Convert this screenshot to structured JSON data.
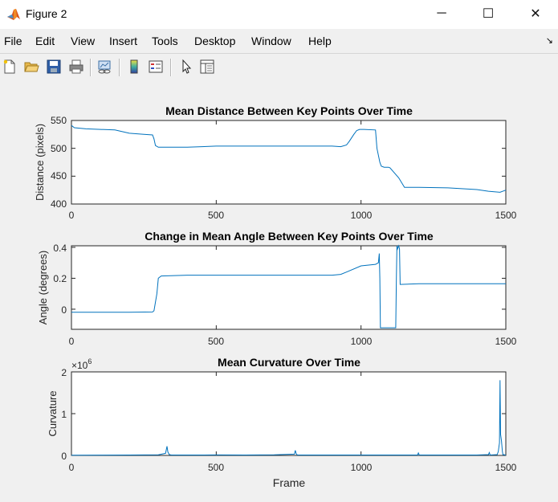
{
  "window": {
    "title": "Figure 2",
    "minimize_glyph": "─",
    "maximize_glyph": "☐",
    "close_glyph": "✕"
  },
  "menu": {
    "items": [
      "File",
      "Edit",
      "View",
      "Insert",
      "Tools",
      "Desktop",
      "Window",
      "Help"
    ],
    "dock_glyph": "↘"
  },
  "toolbar": {
    "buttons": [
      "new-figure",
      "open-file",
      "save",
      "print",
      "link-plot",
      "insert-colorbar",
      "insert-legend",
      "edit-plot",
      "property-inspector"
    ]
  },
  "colors": {
    "line": "#0072bd",
    "axes_bg": "#ffffff",
    "figure_bg": "#f0f0f0"
  },
  "chart_data": [
    {
      "type": "line",
      "title": "Mean Distance Between Key Points Over Time",
      "xlabel": "",
      "ylabel": "Distance (pixels)",
      "xlim": [
        0,
        1500
      ],
      "ylim": [
        400,
        550
      ],
      "xticks": [
        "0",
        "500",
        "1000",
        "1500"
      ],
      "yticks": [
        "400",
        "450",
        "500",
        "550"
      ],
      "x": [
        0,
        10,
        50,
        150,
        200,
        250,
        280,
        285,
        290,
        300,
        400,
        500,
        700,
        900,
        930,
        950,
        960,
        975,
        985,
        995,
        1010,
        1050,
        1055,
        1065,
        1070,
        1080,
        1095,
        1100,
        1130,
        1150,
        1200,
        1300,
        1400,
        1440,
        1480,
        1500
      ],
      "y": [
        541,
        537,
        535,
        533,
        527,
        525,
        524,
        517,
        505,
        502,
        502,
        504,
        504,
        504,
        503,
        506,
        513,
        525,
        532,
        534,
        534,
        533,
        500,
        475,
        468,
        466,
        466,
        465,
        447,
        430,
        430,
        429,
        426,
        423,
        421,
        425
      ]
    },
    {
      "type": "line",
      "title": "Change in Mean Angle Between Key Points Over Time",
      "xlabel": "",
      "ylabel": "Angle (degrees)",
      "xlim": [
        0,
        1500
      ],
      "ylim": [
        -0.13,
        0.41
      ],
      "xticks": [
        "0",
        "500",
        "1000",
        "1500"
      ],
      "yticks": [
        "0",
        "0.2",
        "0.4"
      ],
      "x": [
        0,
        200,
        280,
        285,
        295,
        300,
        310,
        400,
        500,
        700,
        900,
        930,
        950,
        1000,
        1050,
        1060,
        1063,
        1065,
        1067,
        1120,
        1122,
        1124,
        1126,
        1130,
        1133,
        1135,
        1200,
        1500
      ],
      "y": [
        -0.02,
        -0.02,
        -0.018,
        -0.01,
        0.1,
        0.2,
        0.215,
        0.22,
        0.22,
        0.22,
        0.22,
        0.225,
        0.24,
        0.28,
        0.29,
        0.3,
        0.36,
        0.2,
        -0.12,
        -0.12,
        0.2,
        0.41,
        0.39,
        0.41,
        0.39,
        0.16,
        0.165,
        0.165
      ]
    },
    {
      "type": "line",
      "title": "Mean Curvature Over Time",
      "xlabel": "Frame",
      "ylabel": "Curvature",
      "exponent_label": "×10",
      "exponent_power": "6",
      "xlim": [
        0,
        1500
      ],
      "ylim": [
        0,
        2
      ],
      "xticks": [
        "0",
        "500",
        "1000",
        "1500"
      ],
      "yticks": [
        "0",
        "1",
        "2"
      ],
      "x": [
        0,
        100,
        200,
        300,
        325,
        330,
        333,
        338,
        345,
        400,
        500,
        600,
        700,
        770,
        773,
        776,
        780,
        800,
        900,
        1000,
        1100,
        1195,
        1198,
        1201,
        1300,
        1400,
        1440,
        1443,
        1446,
        1470,
        1474,
        1478,
        1480,
        1482,
        1485,
        1488,
        1490,
        1500
      ],
      "y": [
        0.005,
        0.008,
        0.01,
        0.015,
        0.05,
        0.22,
        0.08,
        0.02,
        0.01,
        0.01,
        0.012,
        0.01,
        0.015,
        0.03,
        0.12,
        0.04,
        0.01,
        0.01,
        0.01,
        0.01,
        0.01,
        0.01,
        0.06,
        0.01,
        0.01,
        0.01,
        0.02,
        0.07,
        0.01,
        0.02,
        0.09,
        0.3,
        1.8,
        0.5,
        0.35,
        0.1,
        0.02,
        0.01
      ]
    }
  ]
}
